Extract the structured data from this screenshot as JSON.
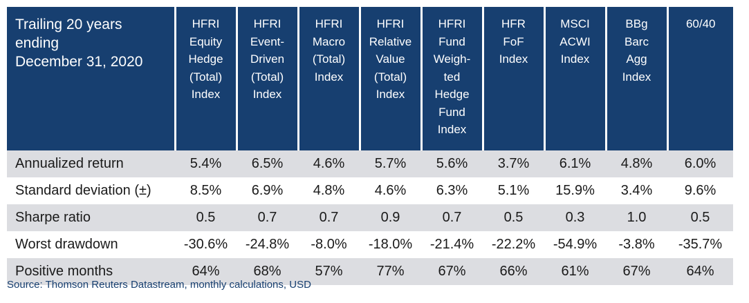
{
  "table": {
    "corner_lines": [
      "Trailing 20 years",
      "ending",
      "December 31, 2020"
    ],
    "columns": [
      {
        "lines": [
          "HFRI",
          "Equity",
          "Hedge",
          "(Total)",
          "Index"
        ]
      },
      {
        "lines": [
          "HFRI",
          "Event-",
          "Driven",
          "(Total)",
          "Index"
        ]
      },
      {
        "lines": [
          "HFRI",
          "Macro",
          "(Total)",
          "Index"
        ]
      },
      {
        "lines": [
          "HFRI",
          "Relative",
          "Value",
          "(Total)",
          "Index"
        ]
      },
      {
        "lines": [
          "HFRI",
          "Fund",
          "Weigh-",
          "ted",
          "Hedge",
          "Fund",
          "Index"
        ]
      },
      {
        "lines": [
          "HFR",
          "FoF",
          "Index"
        ]
      },
      {
        "lines": [
          "MSCI",
          "ACWI",
          "Index"
        ]
      },
      {
        "lines": [
          "BBg",
          "Barc",
          "Agg",
          "Index"
        ]
      },
      {
        "lines": [
          "60/40"
        ]
      }
    ],
    "rows": [
      {
        "label": "Annualized return",
        "values": [
          "5.4%",
          "6.5%",
          "4.6%",
          "5.7%",
          "5.6%",
          "3.7%",
          "6.1%",
          "4.8%",
          "6.0%"
        ]
      },
      {
        "label": "Standard deviation (±)",
        "values": [
          "8.5%",
          "6.9%",
          "4.8%",
          "4.6%",
          "6.3%",
          "5.1%",
          "15.9%",
          "3.4%",
          "9.6%"
        ]
      },
      {
        "label": "Sharpe ratio",
        "values": [
          "0.5",
          "0.7",
          "0.7",
          "0.9",
          "0.7",
          "0.5",
          "0.3",
          "1.0",
          "0.5"
        ]
      },
      {
        "label": "Worst drawdown",
        "values": [
          "-30.6%",
          "-24.8%",
          "-8.0%",
          "-18.0%",
          "-21.4%",
          "-22.2%",
          "-54.9%",
          "-3.8%",
          "-35.7%"
        ]
      },
      {
        "label": "Positive months",
        "values": [
          "64%",
          "68%",
          "57%",
          "77%",
          "67%",
          "66%",
          "61%",
          "67%",
          "64%"
        ]
      }
    ]
  },
  "source": "Source: Thomson Reuters Datastream, monthly calculations, USD",
  "colors": {
    "header_bg": "#173F70",
    "header_text": "#FFFFFF",
    "row_shade": "#DCDDE1",
    "source_text": "#173F70"
  }
}
